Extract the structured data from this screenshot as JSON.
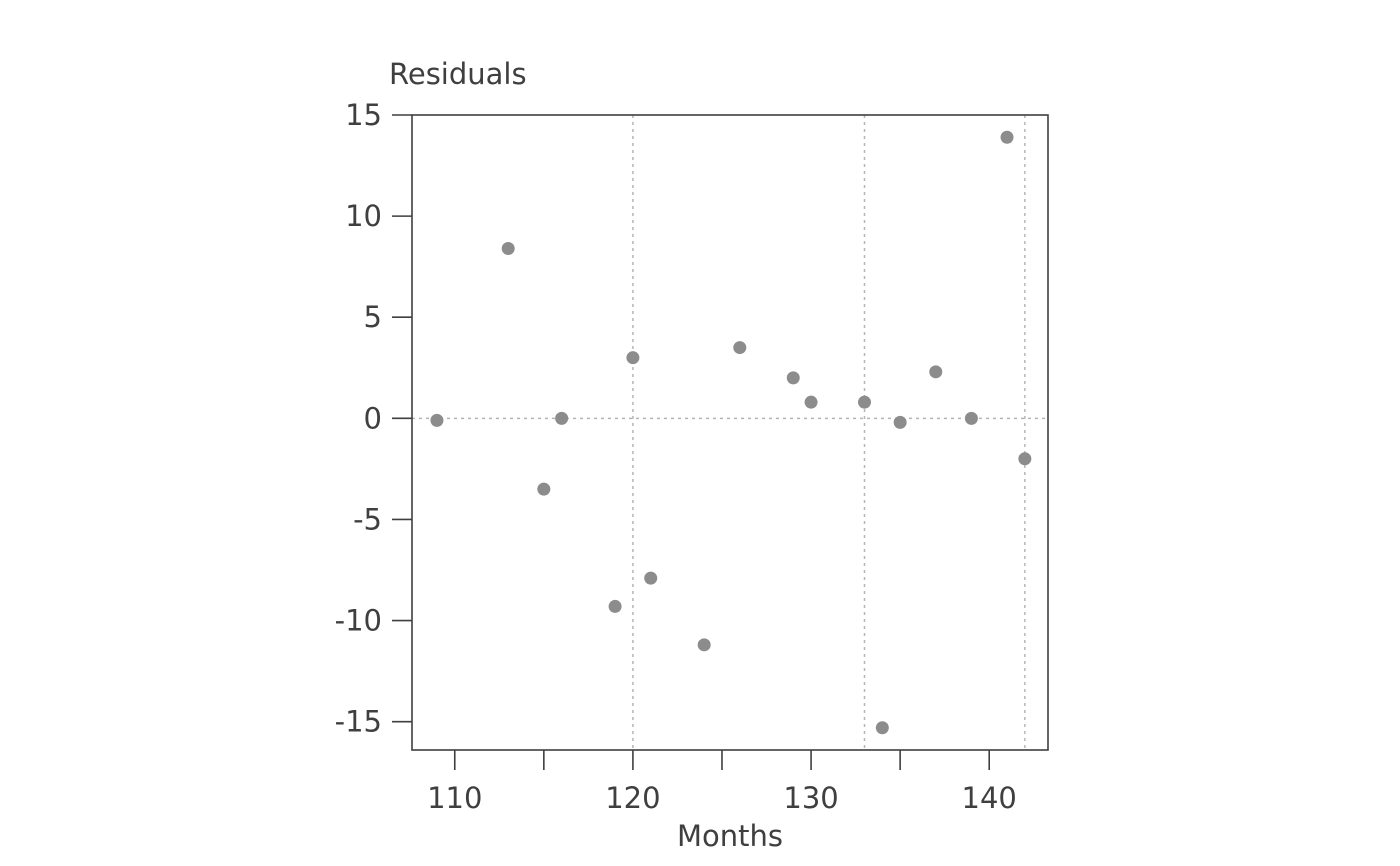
{
  "chart_data": {
    "type": "scatter",
    "title": "",
    "xlabel": "Months",
    "ylabel": "Residuals",
    "xlim": [
      107.6,
      143.3
    ],
    "ylim": [
      -16.4,
      15
    ],
    "x_ticks": [
      110,
      115,
      120,
      125,
      130,
      135,
      140
    ],
    "x_tick_labels": [
      "110",
      "",
      "120",
      "",
      "130",
      "",
      "140"
    ],
    "y_ticks": [
      15,
      10,
      5,
      0,
      -5,
      -10,
      -15
    ],
    "y_tick_labels": [
      "15",
      "10",
      "5",
      "0",
      "-5",
      "-10",
      "-15"
    ],
    "reference_lines": {
      "horizontal": [
        0
      ],
      "vertical": [
        120,
        133,
        142
      ]
    },
    "grid": false,
    "points": [
      {
        "x": 109,
        "y": -0.1
      },
      {
        "x": 113,
        "y": 8.4
      },
      {
        "x": 115,
        "y": -3.5
      },
      {
        "x": 116,
        "y": 0.0
      },
      {
        "x": 119,
        "y": -9.3
      },
      {
        "x": 120,
        "y": 3.0
      },
      {
        "x": 121,
        "y": -7.9
      },
      {
        "x": 124,
        "y": -11.2
      },
      {
        "x": 126,
        "y": 3.5
      },
      {
        "x": 129,
        "y": 2.0
      },
      {
        "x": 130,
        "y": 0.8
      },
      {
        "x": 133,
        "y": 0.8
      },
      {
        "x": 134,
        "y": -15.3
      },
      {
        "x": 135,
        "y": -0.2
      },
      {
        "x": 137,
        "y": 2.3
      },
      {
        "x": 139,
        "y": 0.0
      },
      {
        "x": 141,
        "y": 13.9
      },
      {
        "x": 142,
        "y": -2.0
      }
    ],
    "colors": {
      "points": "#8c8c8c",
      "axes": "#3f3f3f",
      "reference_lines": "#b5b5b5"
    }
  }
}
